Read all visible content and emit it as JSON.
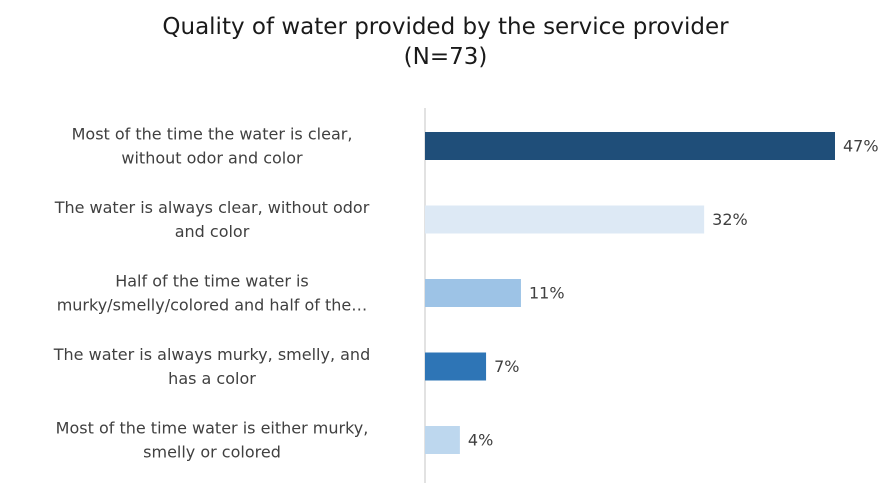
{
  "chart_data": {
    "type": "bar",
    "orientation": "horizontal",
    "title": "Quality of water provided by the service provider",
    "subtitle": "(N=73)",
    "categories": [
      [
        "Most of the time the water is clear,",
        "without odor and color"
      ],
      [
        "The water is always clear, without odor",
        "and color"
      ],
      [
        "Half of the time water is",
        "murky/smelly/colored and half of the…"
      ],
      [
        "The water is always murky, smelly, and",
        "has a color"
      ],
      [
        "Most of the time water is either murky,",
        "smelly or colored"
      ]
    ],
    "values": [
      47,
      32,
      11,
      7,
      4
    ],
    "value_labels": [
      "47%",
      "32%",
      "11%",
      "7%",
      "4%"
    ],
    "bar_colors": [
      "#1f4e79",
      "#dde9f5",
      "#9dc3e6",
      "#2e75b6",
      "#bdd7ee"
    ],
    "xlim": [
      0,
      47
    ],
    "grid": false,
    "legend": "none"
  }
}
